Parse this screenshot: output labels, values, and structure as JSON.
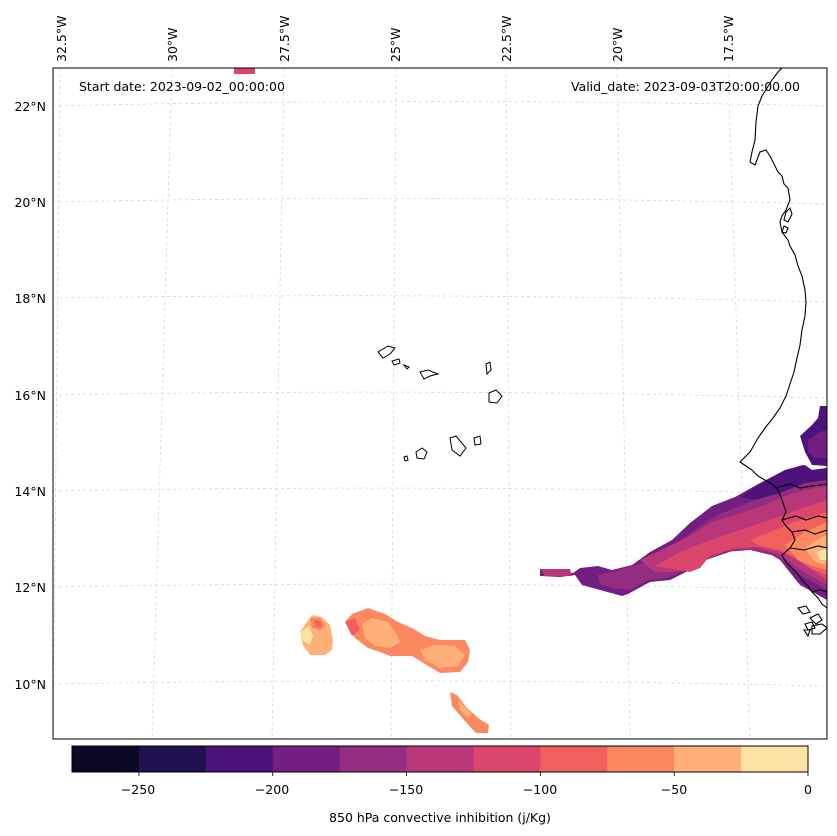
{
  "map": {
    "start_date": "Start date: 2023-09-02_00:00:00",
    "valid_date": "Valid_date: 2023-09-03T20:00:00.00",
    "lon_labels": [
      "32.5°W",
      "30°W",
      "27.5°W",
      "25°W",
      "22.5°W",
      "20°W",
      "17.5°W"
    ],
    "lat_labels": [
      "22°N",
      "20°N",
      "18°N",
      "16°N",
      "14°N",
      "12°N",
      "10°N"
    ],
    "gridlines": true,
    "features": [
      "Cape Verde islands",
      "West African coastline"
    ]
  },
  "colorbar": {
    "label": "850 hPa convective inhibition (j/Kg)",
    "tick_labels": [
      "−250",
      "−200",
      "−150",
      "−100",
      "−50",
      "0"
    ],
    "levels": [
      -275,
      -250,
      -225,
      -200,
      -175,
      -150,
      -125,
      -100,
      -75,
      -50,
      -25,
      0
    ],
    "colors": [
      "#0b0924",
      "#221150",
      "#4d127b",
      "#731f81",
      "#942c80",
      "#b73779",
      "#da466c",
      "#f1605d",
      "#fb8861",
      "#feb078",
      "#fde3a3"
    ]
  }
}
